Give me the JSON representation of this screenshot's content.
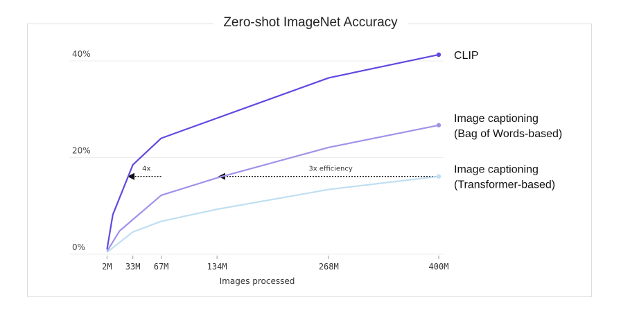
{
  "chart_data": {
    "type": "line",
    "title": "Zero-shot ImageNet Accuracy",
    "xlabel": "Images processed",
    "ylabel": "",
    "x_ticks": [
      {
        "label": "2M",
        "value": 2
      },
      {
        "label": "33M",
        "value": 33
      },
      {
        "label": "67M",
        "value": 67
      },
      {
        "label": "134M",
        "value": 134
      },
      {
        "label": "268M",
        "value": 268
      },
      {
        "label": "400M",
        "value": 400
      }
    ],
    "y_ticks": [
      {
        "label": "0%",
        "value": 0
      },
      {
        "label": "20%",
        "value": 20
      },
      {
        "label": "40%",
        "value": 40
      }
    ],
    "xlim": [
      0,
      400
    ],
    "ylim": [
      0,
      42
    ],
    "grid": "horizontal",
    "series": [
      {
        "name": "CLIP",
        "label_lines": [
          "CLIP"
        ],
        "color": "#6049e1",
        "x": [
          2,
          9,
          33,
          67,
          268,
          400
        ],
        "y": [
          1.0,
          8.2,
          18.5,
          24.0,
          36.5,
          41.3
        ]
      },
      {
        "name": "Image captioning (Bag of Words-based)",
        "label_lines": [
          "Image captioning",
          "(Bag of Words-based)"
        ],
        "color": "#9f92ea",
        "x": [
          2,
          17,
          67,
          134,
          268,
          400
        ],
        "y": [
          0.6,
          4.8,
          12.2,
          15.8,
          22.1,
          26.7
        ]
      },
      {
        "name": "Image captioning (Transformer-based)",
        "label_lines": [
          "Image captioning",
          "(Transformer-based)"
        ],
        "color": "#c0dff2",
        "x": [
          2,
          33,
          67,
          134,
          268,
          400
        ],
        "y": [
          0.4,
          4.6,
          6.8,
          9.3,
          13.4,
          16.1
        ]
      }
    ],
    "annotations": [
      {
        "text": "4x",
        "from_x": 67,
        "to_x": 25,
        "y": 16.1
      },
      {
        "text": "3x efficiency",
        "from_x": 400,
        "to_x": 134,
        "y": 16.1
      }
    ]
  }
}
